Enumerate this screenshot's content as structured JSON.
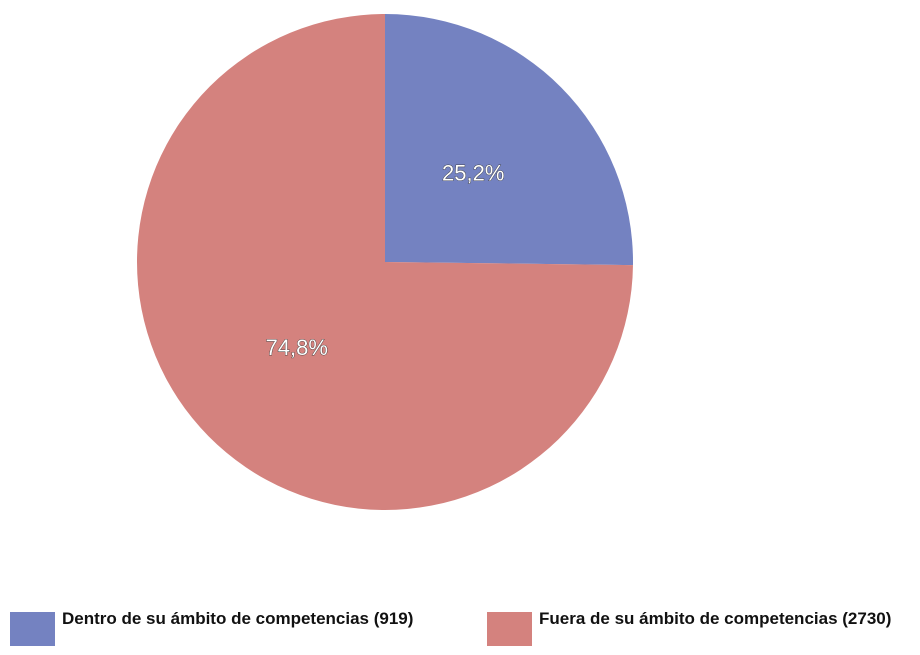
{
  "chart_data": {
    "type": "pie",
    "categories": [
      "Dentro de su ámbito de competencias (919)",
      "Fuera de su ámbito de competencias (2730)"
    ],
    "values": [
      25.2,
      74.8
    ],
    "value_labels": [
      "25,2%",
      "74,8%"
    ],
    "colors": [
      "#7482c1",
      "#d4827e"
    ]
  }
}
